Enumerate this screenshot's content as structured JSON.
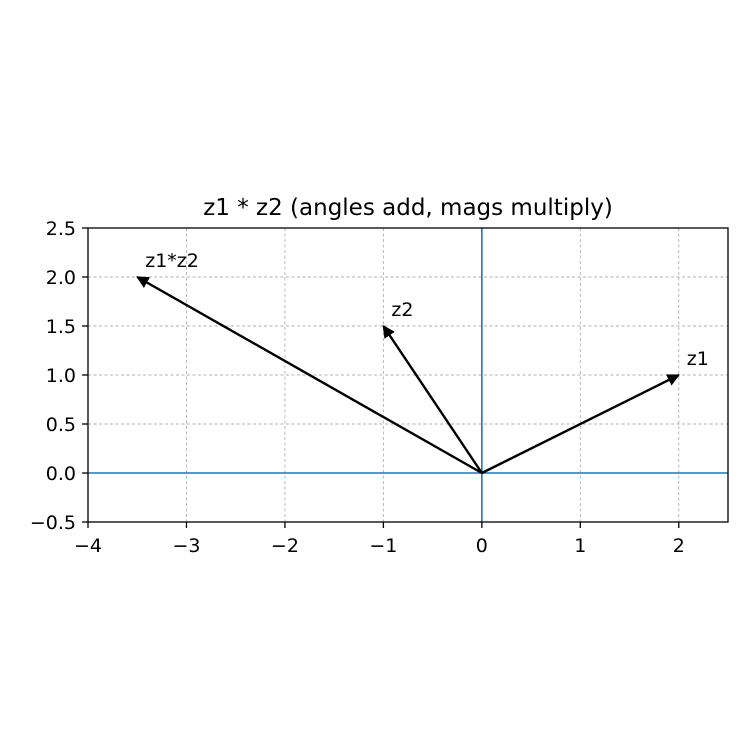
{
  "chart_data": {
    "type": "quiver",
    "title": "z1 * z2 (angles add, mags multiply)",
    "xlabel": "",
    "ylabel": "",
    "xlim": [
      -4,
      2.5
    ],
    "ylim": [
      -0.5,
      2.5
    ],
    "xticks": [
      -4,
      -3,
      -2,
      -1,
      0,
      1,
      2
    ],
    "xtick_labels": [
      "−4",
      "−3",
      "−2",
      "−1",
      "0",
      "1",
      "2"
    ],
    "yticks": [
      -0.5,
      0.0,
      0.5,
      1.0,
      1.5,
      2.0,
      2.5
    ],
    "ytick_labels": [
      "−0.5",
      "0.0",
      "0.5",
      "1.0",
      "1.5",
      "2.0",
      "2.5"
    ],
    "grid": true,
    "grid_style": "dashed",
    "axis_lines": [
      {
        "orientation": "horizontal",
        "value": 0,
        "color": "#1f77b4"
      },
      {
        "orientation": "vertical",
        "value": 0,
        "color": "#1f77b4"
      }
    ],
    "vectors": [
      {
        "label": "z1",
        "x": 2,
        "y": 1,
        "color": "#000000"
      },
      {
        "label": "z2",
        "x": -1,
        "y": 1.5,
        "color": "#000000"
      },
      {
        "label": "z1*z2",
        "x": -3.5,
        "y": 2,
        "color": "#000000"
      }
    ]
  }
}
